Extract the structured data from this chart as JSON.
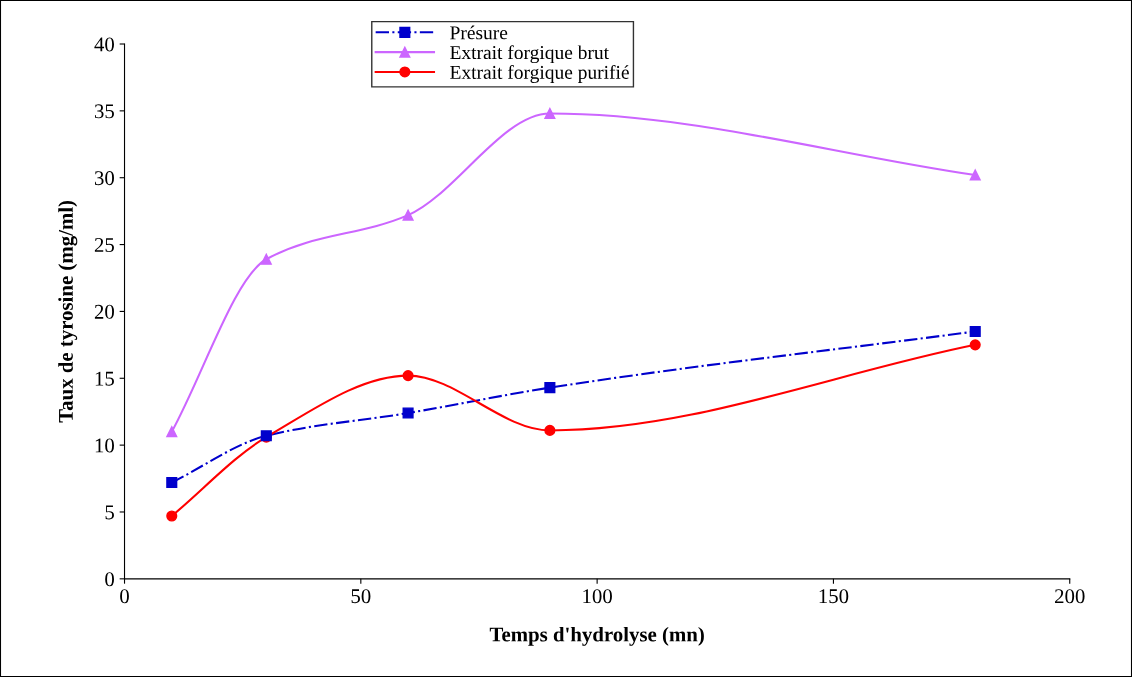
{
  "chart_data": {
    "type": "line",
    "xlabel": "Temps d'hydrolyse (mn)",
    "ylabel": "Taux de tyrosine (mg/ml)",
    "x": [
      10,
      30,
      60,
      90,
      180
    ],
    "series": [
      {
        "name": "Présure",
        "color": "#0000cc",
        "marker": "square",
        "line_style": "dashdot",
        "values": [
          7.2,
          10.7,
          12.4,
          14.3,
          18.5
        ]
      },
      {
        "name": "Extrait forgique brut",
        "color": "#cc66ff",
        "marker": "triangle",
        "line_style": "solid",
        "values": [
          11.0,
          23.9,
          27.2,
          34.8,
          30.2
        ]
      },
      {
        "name": "Extrait forgique purifié",
        "color": "#ff0000",
        "marker": "circle",
        "line_style": "solid",
        "values": [
          4.7,
          10.6,
          15.2,
          11.1,
          17.5
        ]
      }
    ],
    "xlim": [
      0,
      200
    ],
    "xticks": [
      0,
      50,
      100,
      150,
      200
    ],
    "ylim": [
      0,
      40
    ],
    "yticks": [
      0,
      5,
      10,
      15,
      20,
      25,
      30,
      35,
      40
    ],
    "grid": false,
    "legend": "top"
  }
}
